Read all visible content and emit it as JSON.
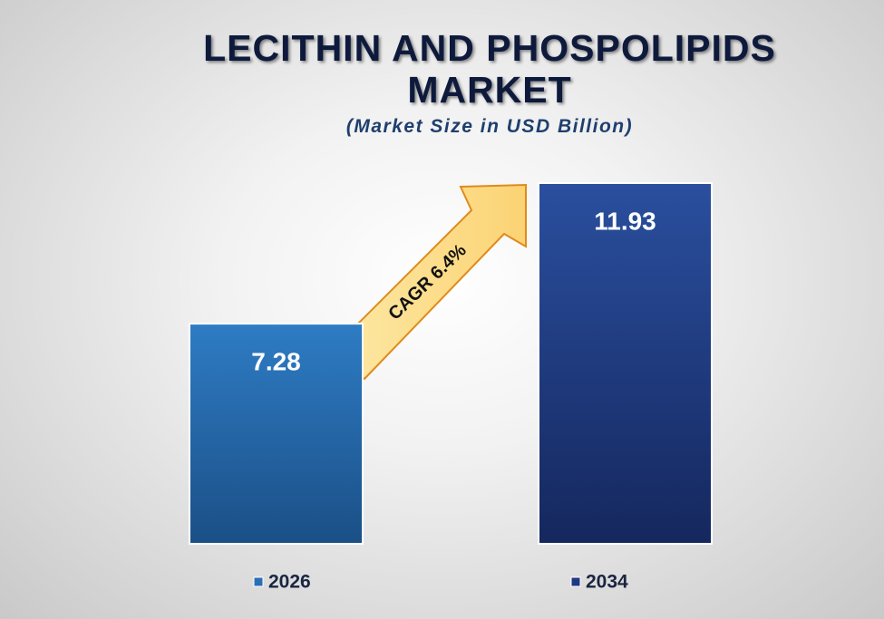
{
  "chart_data": {
    "type": "bar",
    "title": "LECITHIN AND PHOSPOLIPIDS MARKET",
    "subtitle": "(Market Size in USD Billion)",
    "categories": [
      "2026",
      "2034"
    ],
    "values": [
      7.28,
      11.93
    ],
    "colors": [
      "#2a6fb5",
      "#1f3a85"
    ],
    "annotation": "CAGR 6.4%"
  }
}
